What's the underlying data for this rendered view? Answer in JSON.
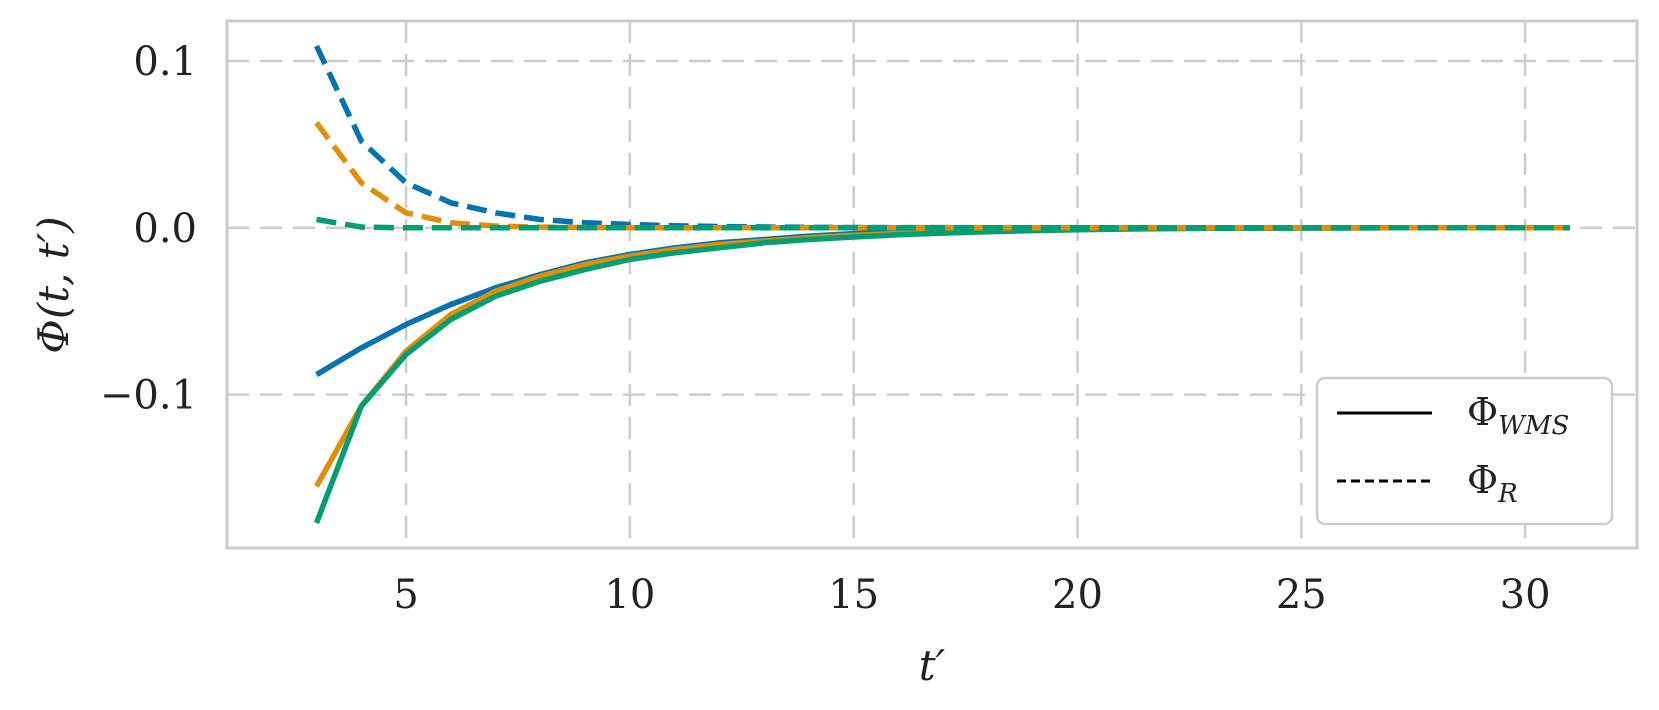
{
  "chart_data": {
    "type": "line",
    "xlabel": "t′",
    "ylabel": "Φ(t, t′)",
    "xlim": [
      1.0,
      32.5
    ],
    "ylim": [
      -0.192,
      0.124
    ],
    "xticks": [
      5,
      10,
      15,
      20,
      25,
      30
    ],
    "yticks": [
      -0.1,
      0.0,
      0.1
    ],
    "xtick_labels": [
      "5",
      "10",
      "15",
      "20",
      "25",
      "30"
    ],
    "ytick_labels": [
      "−0.1",
      "0.0",
      "0.1"
    ],
    "grid": true,
    "grid_style": "dashed",
    "legend": {
      "placement": "bottom-right",
      "entries": [
        {
          "base": "Φ",
          "sub": "WMS",
          "linestyle": "solid"
        },
        {
          "base": "Φ",
          "sub": "R",
          "linestyle": "dashed"
        }
      ]
    },
    "x": [
      3,
      4,
      5,
      6,
      7,
      8,
      9,
      10,
      11,
      12,
      13,
      14,
      15,
      16,
      17,
      18,
      19,
      20,
      21,
      22,
      23,
      24,
      25,
      26,
      27,
      28,
      29,
      30,
      31
    ],
    "series": [
      {
        "color": "#0173b2",
        "style": "solid",
        "values": [
          -0.088,
          -0.072,
          -0.058,
          -0.046,
          -0.036,
          -0.028,
          -0.021,
          -0.016,
          -0.012,
          -0.009,
          -0.007,
          -0.005,
          -0.0035,
          -0.0025,
          -0.0018,
          -0.0013,
          -0.0009,
          -0.0006,
          -0.0004,
          -0.0003,
          -0.0002,
          -0.0001,
          -0.0001,
          0,
          0,
          0,
          0,
          0,
          0
        ]
      },
      {
        "color": "#de8f05",
        "style": "solid",
        "values": [
          -0.155,
          -0.107,
          -0.074,
          -0.052,
          -0.038,
          -0.029,
          -0.022,
          -0.017,
          -0.013,
          -0.01,
          -0.008,
          -0.006,
          -0.0045,
          -0.0034,
          -0.0025,
          -0.0018,
          -0.0013,
          -0.0009,
          -0.0006,
          -0.0004,
          -0.0003,
          -0.0002,
          -0.0001,
          -0.0001,
          0,
          0,
          0,
          0,
          0
        ]
      },
      {
        "color": "#029e73",
        "style": "solid",
        "values": [
          -0.177,
          -0.107,
          -0.076,
          -0.055,
          -0.041,
          -0.032,
          -0.025,
          -0.019,
          -0.015,
          -0.012,
          -0.009,
          -0.007,
          -0.0055,
          -0.0042,
          -0.0032,
          -0.0024,
          -0.0017,
          -0.0012,
          -0.0008,
          -0.0005,
          -0.0003,
          -0.0002,
          -0.0001,
          -0.0001,
          0,
          0,
          0,
          0,
          0
        ]
      },
      {
        "color": "#0173b2",
        "style": "dashed",
        "values": [
          0.109,
          0.052,
          0.027,
          0.015,
          0.009,
          0.005,
          0.003,
          0.002,
          0.0012,
          0.0008,
          0.0005,
          0.0003,
          0.0002,
          0.0001,
          0.0001,
          0,
          0,
          0,
          0,
          0,
          0,
          0,
          0,
          0,
          0,
          0,
          0,
          0,
          0
        ]
      },
      {
        "color": "#de8f05",
        "style": "dashed",
        "values": [
          0.063,
          0.027,
          0.009,
          0.003,
          0.001,
          0.0004,
          0.0002,
          0.0001,
          0,
          0,
          0,
          0,
          0,
          0,
          0,
          0,
          0,
          0,
          0,
          0,
          0,
          0,
          0,
          0,
          0,
          0,
          0,
          0,
          0
        ]
      },
      {
        "color": "#029e73",
        "style": "dashed",
        "values": [
          0.005,
          0.0005,
          0,
          0,
          0,
          0,
          0,
          0,
          0,
          0,
          0,
          0,
          0,
          0,
          0,
          0,
          0,
          0,
          0,
          0,
          0,
          0,
          0,
          0,
          0,
          0,
          0,
          0,
          0
        ]
      }
    ]
  }
}
